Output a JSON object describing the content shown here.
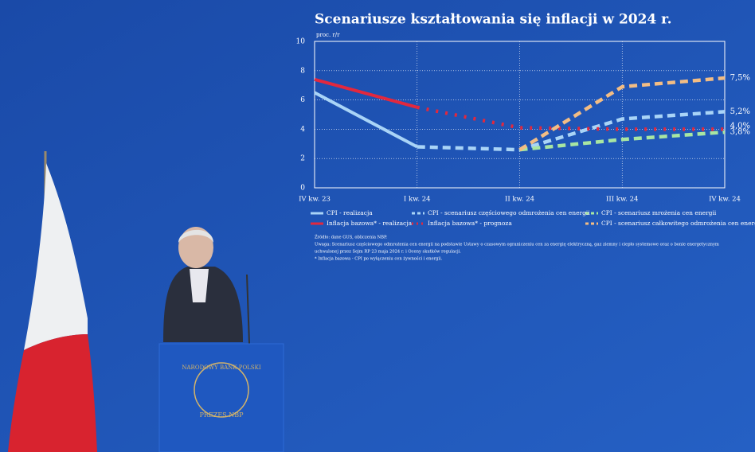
{
  "chart_data": {
    "type": "line",
    "title": "Scenariusze kształtowania się inflacji w 2024 r.",
    "y_label": "proc. r/r",
    "categories": [
      "IV kw. 23",
      "I kw. 24",
      "II kw. 24",
      "III kw. 24",
      "IV kw. 24"
    ],
    "ylim": [
      0,
      10
    ],
    "yticks": [
      0,
      2,
      4,
      6,
      8,
      10
    ],
    "grid": true,
    "series": [
      {
        "name": "CPI - realizacja",
        "color": "#a9d4f7",
        "style": "solid",
        "values": [
          6.5,
          2.8,
          null,
          null,
          null
        ]
      },
      {
        "name": "Inflacja bazowa* - realizacja",
        "color": "#e2283e",
        "style": "solid",
        "values": [
          7.4,
          5.5,
          null,
          null,
          null
        ]
      },
      {
        "name": "CPI - scenariusz częściowego odmrożenia cen energii",
        "color": "#a9d4f7",
        "style": "dashed",
        "values": [
          null,
          2.8,
          2.6,
          4.7,
          5.2
        ],
        "value_labels": [
          null,
          null,
          null,
          null,
          "5,2%"
        ]
      },
      {
        "name": "Inflacja bazowa* - prognoza",
        "color": "#e2283e",
        "style": "dotted",
        "values": [
          null,
          5.5,
          4.1,
          4.0,
          4.0
        ],
        "value_labels": [
          null,
          null,
          null,
          null,
          "4,0%"
        ]
      },
      {
        "name": "CPI - scenariusz mrożenia cen energii",
        "color": "#a8e6a2",
        "style": "dashed",
        "values": [
          null,
          null,
          2.6,
          3.3,
          3.8
        ],
        "value_labels": [
          null,
          null,
          null,
          null,
          "3,8%"
        ]
      },
      {
        "name": "CPI - scenariusz całkowitego odmrożenia cen energii",
        "color": "#f3bd84",
        "style": "dashed",
        "values": [
          null,
          null,
          2.6,
          6.9,
          7.5
        ],
        "value_labels": [
          null,
          null,
          null,
          null,
          "7,5%"
        ]
      }
    ],
    "notes": [
      "Źródło: dane GUS, obliczenia NBP.",
      "Uwaga: Scenariusz częściowego odmrożenia cen energii na podstawie Ustawy o czasowym ograniczeniu cen za energię elektryczną, gaz ziemny i ciepło systemowe oraz o bonie energetycznym",
      "uchwalonej przez Sejm RP 23 maja 2024 r. i Oceny skutków regulacji.",
      "* Inflacja bazowa - CPI po wyłączeniu cen żywności i energii."
    ]
  },
  "scene": {
    "podium_text": "NARODOWY BANK POLSKI",
    "podium_subtext": "PREZES NBP"
  }
}
